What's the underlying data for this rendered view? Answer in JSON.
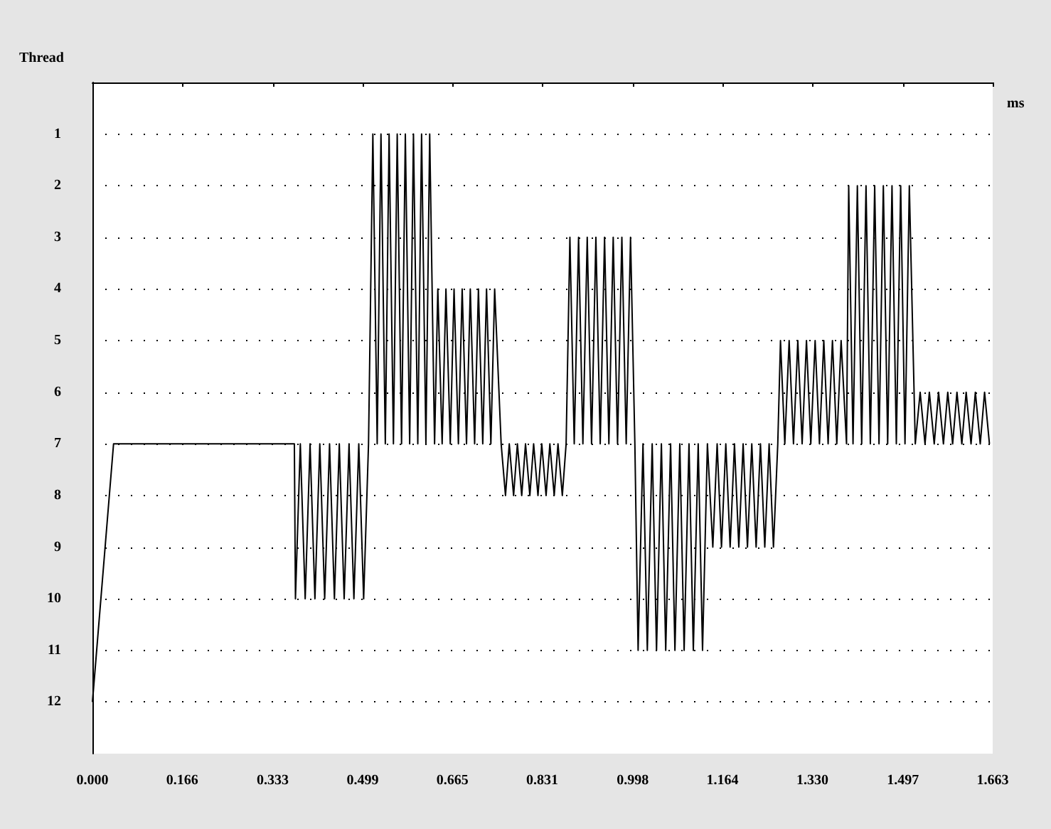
{
  "chart_data": {
    "type": "line",
    "xlabel": "ms",
    "ylabel": "Thread",
    "color": "#000000",
    "marker": "none",
    "line_style": "solid",
    "grid": "y",
    "xlim": [
      0,
      1.663
    ],
    "xticks": [
      {
        "value": 0,
        "label": "0.000"
      },
      0.166,
      0.333,
      0.499,
      0.665,
      0.831,
      0.998,
      1.164,
      {
        "value": 1.33,
        "label": "1.330"
      },
      1.497,
      1.663
    ],
    "ylim": [
      13,
      0
    ],
    "yticks": [
      1,
      2,
      3,
      4,
      5,
      6,
      7,
      8,
      9,
      10,
      11,
      12
    ],
    "x": [
      0,
      0.039,
      0.373,
      0.375,
      0.384,
      0.393,
      0.402,
      0.411,
      0.42,
      0.429,
      0.438,
      0.447,
      0.456,
      0.465,
      0.474,
      0.483,
      0.492,
      0.501,
      0.51,
      0.518,
      0.526,
      0.533,
      0.541,
      0.548,
      0.556,
      0.563,
      0.571,
      0.578,
      0.586,
      0.593,
      0.601,
      0.608,
      0.616,
      0.623,
      0.632,
      0.638,
      0.646,
      0.653,
      0.661,
      0.668,
      0.676,
      0.683,
      0.691,
      0.698,
      0.706,
      0.713,
      0.721,
      0.728,
      0.736,
      0.743,
      0.755,
      0.763,
      0.77,
      0.778,
      0.785,
      0.793,
      0.8,
      0.808,
      0.815,
      0.823,
      0.83,
      0.838,
      0.845,
      0.853,
      0.86,
      0.868,
      0.875,
      0.882,
      0.89,
      0.898,
      0.906,
      0.914,
      0.922,
      0.93,
      0.938,
      0.946,
      0.954,
      0.962,
      0.97,
      0.978,
      0.986,
      0.994,
      1.002,
      1.008,
      1.017,
      1.025,
      1.034,
      1.042,
      1.051,
      1.059,
      1.068,
      1.076,
      1.085,
      1.093,
      1.102,
      1.11,
      1.119,
      1.127,
      1.136,
      1.146,
      1.154,
      1.162,
      1.17,
      1.178,
      1.186,
      1.194,
      1.202,
      1.21,
      1.218,
      1.226,
      1.234,
      1.242,
      1.25,
      1.258,
      1.266,
      1.271,
      1.279,
      1.287,
      1.295,
      1.303,
      1.311,
      1.319,
      1.327,
      1.335,
      1.343,
      1.351,
      1.359,
      1.367,
      1.375,
      1.383,
      1.393,
      1.397,
      1.405,
      1.413,
      1.421,
      1.429,
      1.437,
      1.445,
      1.453,
      1.461,
      1.469,
      1.477,
      1.485,
      1.493,
      1.501,
      1.509,
      1.52,
      1.529,
      1.538,
      1.546,
      1.555,
      1.563,
      1.572,
      1.58,
      1.589,
      1.597,
      1.606,
      1.614,
      1.623,
      1.631,
      1.64,
      1.648,
      1.657
    ],
    "values": [
      12,
      7,
      7,
      10,
      7,
      10,
      7,
      10,
      7,
      10,
      7,
      10,
      7,
      10,
      7,
      10,
      7,
      10,
      7,
      1,
      7,
      1,
      7,
      1,
      7,
      1,
      7,
      1,
      7,
      1,
      7,
      1,
      7,
      1,
      7,
      4,
      7,
      4,
      7,
      4,
      7,
      4,
      7,
      4,
      7,
      4,
      7,
      4,
      7,
      4,
      7,
      8,
      7,
      8,
      7,
      8,
      7,
      8,
      7,
      8,
      7,
      8,
      7,
      8,
      7,
      8,
      7,
      3,
      7,
      3,
      7,
      3,
      7,
      3,
      7,
      3,
      7,
      3,
      7,
      3,
      7,
      3,
      7,
      11,
      7,
      11,
      7,
      11,
      7,
      11,
      7,
      11,
      7,
      11,
      7,
      11,
      7,
      11,
      7,
      9,
      7,
      9,
      7,
      9,
      7,
      9,
      7,
      9,
      7,
      9,
      7,
      9,
      7,
      9,
      7,
      5,
      7,
      5,
      7,
      5,
      7,
      5,
      7,
      5,
      7,
      5,
      7,
      5,
      7,
      5,
      7,
      2,
      7,
      2,
      7,
      2,
      7,
      2,
      7,
      2,
      7,
      2,
      7,
      2,
      7,
      2,
      7,
      6,
      7,
      6,
      7,
      6,
      7,
      6,
      7,
      6,
      7,
      6,
      7,
      6,
      7,
      6,
      7
    ]
  }
}
